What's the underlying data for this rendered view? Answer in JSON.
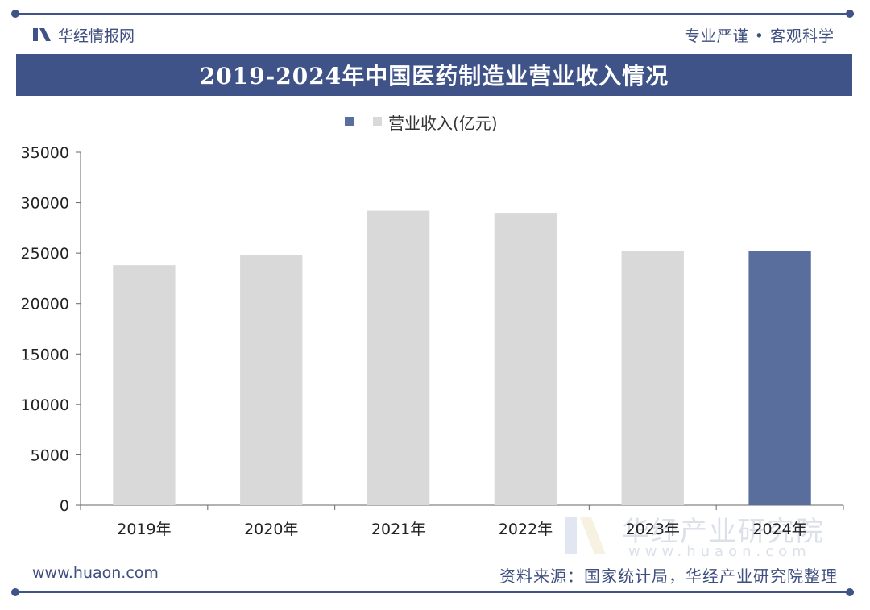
{
  "header": {
    "brand": "华经情报网",
    "slogan": "专业严谨 • 客观科学"
  },
  "chart_data": {
    "type": "bar",
    "title": "2019-2024年中国医药制造业营业收入情况",
    "categories": [
      "2019年",
      "2020年",
      "2021年",
      "2022年",
      "2023年",
      "2024年"
    ],
    "series": [
      {
        "name": "营业收入(亿元)",
        "values": [
          23800,
          24800,
          29200,
          29000,
          25200,
          25200
        ]
      }
    ],
    "ylim": [
      0,
      35000
    ],
    "yticks": [
      0,
      5000,
      10000,
      15000,
      20000,
      25000,
      30000,
      35000
    ],
    "legend_position": "top-center",
    "grid": false,
    "colors": {
      "default_bar": "#d9d9d9",
      "highlight_bar": "#5a6e9e",
      "axis": "#666666"
    },
    "highlight_index": 5
  },
  "footer": {
    "website": "www.huaon.com",
    "source": "资料来源：国家统计局，华经产业研究院整理"
  },
  "watermark": {
    "main": "华经产业研究院",
    "sub": "www.huaon.com"
  },
  "icons": {
    "brand": "huajing-logo-icon",
    "legend": "legend-square-icon"
  }
}
